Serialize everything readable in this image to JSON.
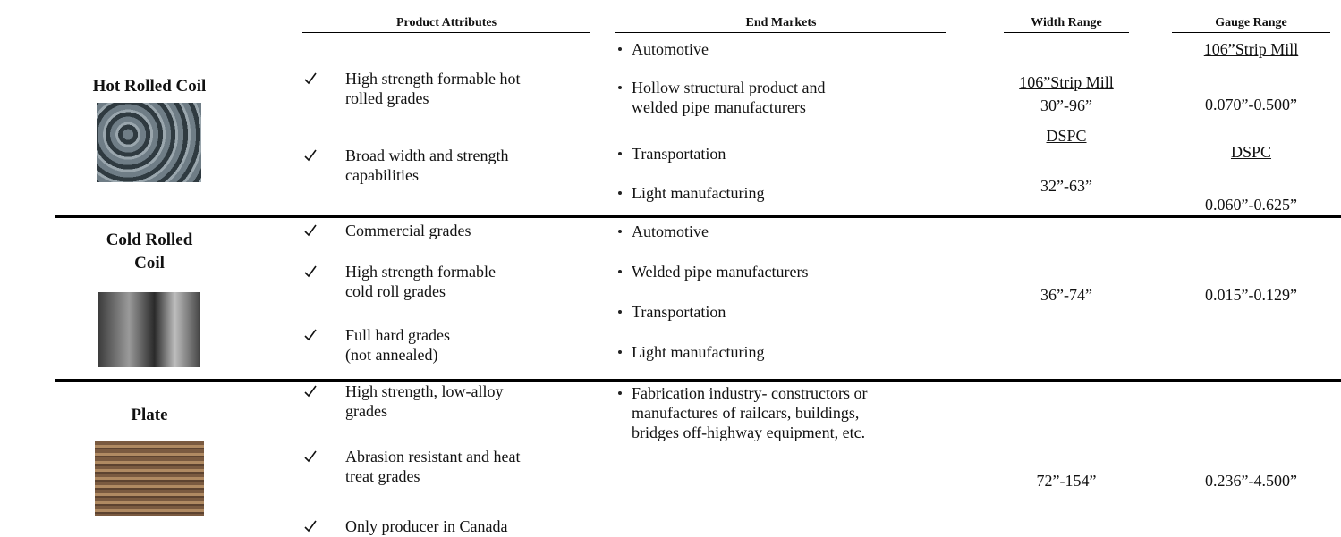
{
  "header": {
    "product_attributes": "Product Attributes",
    "end_markets": "End Markets",
    "width_range": "Width Range",
    "gauge_range": "Gauge Range"
  },
  "rows": [
    {
      "product": "Hot Rolled Coil",
      "attributes": [
        "High strength formable hot\nrolled grades",
        "Broad width and strength\ncapabilities"
      ],
      "end_markets": [
        "Automotive",
        "Hollow structural product and\nwelded pipe manufacturers",
        "Transportation",
        "Light manufacturing"
      ],
      "width": [
        {
          "heading": "106”Strip Mill",
          "range": "30”-96”"
        },
        {
          "heading": "DSPC",
          "range": "32”-63”"
        }
      ],
      "gauge": [
        {
          "heading": "106”Strip Mill",
          "range": "0.070”-0.500”"
        },
        {
          "heading": "DSPC",
          "range": "0.060”-0.625”"
        }
      ]
    },
    {
      "product": "Cold Rolled\nCoil",
      "attributes": [
        "Commercial grades",
        "High strength formable\ncold roll grades",
        "Full hard grades\n(not annealed)"
      ],
      "end_markets": [
        "Automotive",
        "Welded pipe manufacturers",
        "Transportation",
        "Light manufacturing"
      ],
      "width": [
        {
          "range": "36”-74”"
        }
      ],
      "gauge": [
        {
          "range": "0.015”-0.129”"
        }
      ]
    },
    {
      "product": "Plate",
      "attributes": [
        "High strength, low-alloy\ngrades",
        "Abrasion resistant and heat\ntreat grades",
        "Only producer in Canada"
      ],
      "end_markets": [
        "Fabrication industry- constructors or\nmanufactures of railcars, buildings,\nbridges off-highway equipment, etc."
      ],
      "width": [
        {
          "range": "72”-154”"
        }
      ],
      "gauge": [
        {
          "range": "0.236”-4.500”"
        }
      ]
    }
  ]
}
